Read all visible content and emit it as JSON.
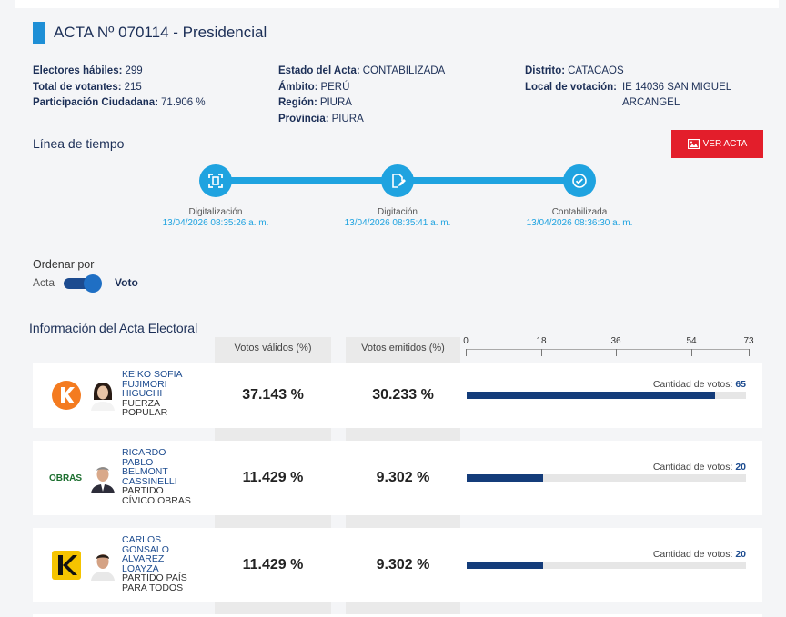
{
  "acta_title": "ACTA Nº 070114 - Presidencial",
  "info": {
    "electores_lbl": "Electores hábiles:",
    "electores_val": "299",
    "votantes_lbl": "Total de votantes:",
    "votantes_val": "215",
    "particip_lbl": "Participación Ciudadana:",
    "particip_val": "71.906 %",
    "estado_lbl": "Estado del Acta:",
    "estado_val": "CONTABILIZADA",
    "ambito_lbl": "Ámbito:",
    "ambito_val": "PERÚ",
    "region_lbl": "Región:",
    "region_val": "PIURA",
    "provincia_lbl": "Provincia:",
    "provincia_val": "PIURA",
    "distrito_lbl": "Distrito:",
    "distrito_val": "CATACAOS",
    "local_lbl": "Local de votación:",
    "local_val": "IE 14036 SAN MIGUEL ARCANGEL"
  },
  "timeline": {
    "title": "Línea de tiempo",
    "ver_acta": "VER ACTA",
    "steps": [
      {
        "name": "Digitalización",
        "date": "13/04/2026 08:35:26 a. m.",
        "icon": "scan-icon"
      },
      {
        "name": "Digitación",
        "date": "13/04/2026 08:35:41 a. m.",
        "icon": "edit-document-icon"
      },
      {
        "name": "Contabilizada",
        "date": "13/04/2026 08:36:30 a. m.",
        "icon": "check-circle-icon"
      }
    ]
  },
  "order": {
    "label": "Ordenar por",
    "option_left": "Acta",
    "option_right": "Voto",
    "selected": "Voto"
  },
  "electoral": {
    "title": "Información del Acta Electoral",
    "col_validos": "Votos válidos (%)",
    "col_emitidos": "Votos emitidos (%)",
    "axis_ticks": [
      "0",
      "18",
      "36",
      "54",
      "73"
    ],
    "axis_max": 73,
    "votes_label": "Cantidad de votos:",
    "rows": [
      {
        "candidate": "KEIKO SOFIA FUJIMORI HIGUCHI",
        "party": "FUERZA POPULAR",
        "validos": "37.143 %",
        "emitidos": "30.233 %",
        "votes": "65",
        "votes_num": 65
      },
      {
        "candidate": "RICARDO PABLO BELMONT CASSINELLI",
        "party": "PARTIDO CÍVICO OBRAS",
        "validos": "11.429 %",
        "emitidos": "9.302 %",
        "votes": "20",
        "votes_num": 20,
        "logo_text": "OBRAS"
      },
      {
        "candidate": "CARLOS GONSALO ALVAREZ LOAYZA",
        "party": "PARTIDO PAÍS PARA TODOS",
        "validos": "11.429 %",
        "emitidos": "9.302 %",
        "votes": "20",
        "votes_num": 20
      }
    ]
  },
  "colors": {
    "accent": "#1fa3e0",
    "navy": "#1c2f57",
    "bar": "#143c7a",
    "red": "#e31e2b"
  }
}
